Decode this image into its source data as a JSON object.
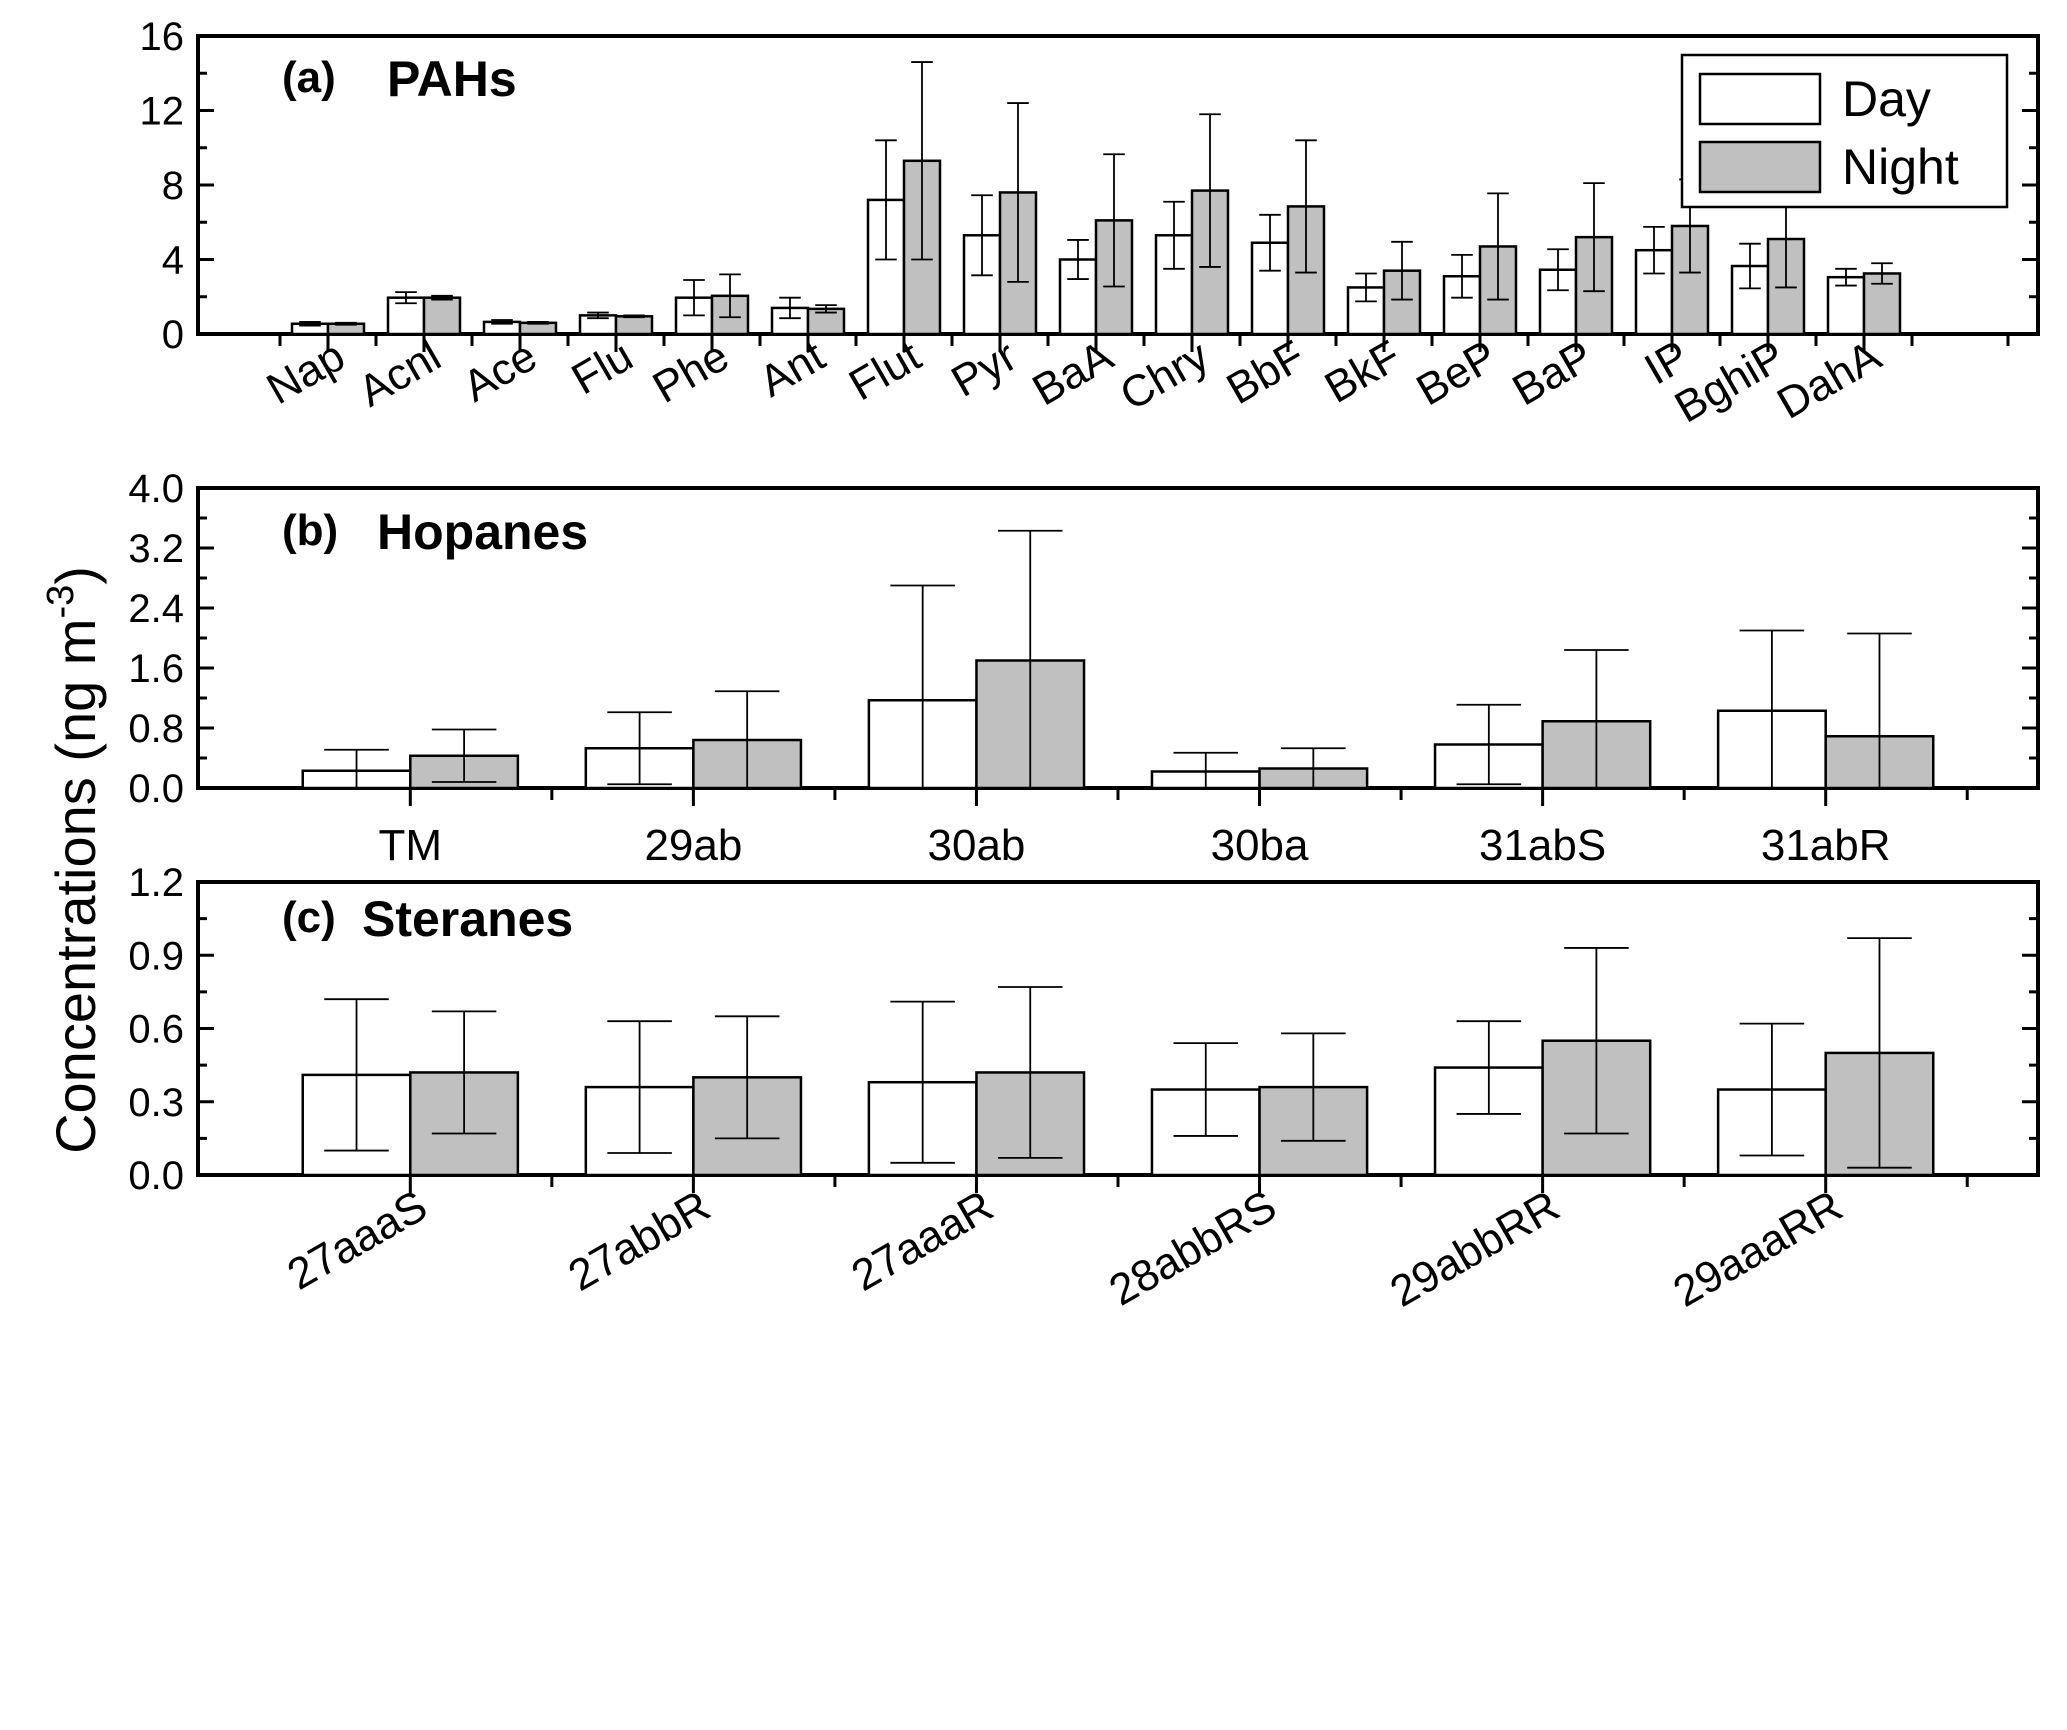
{
  "figure": {
    "y_axis_label": "Concentrations (ng m",
    "y_axis_label_sup": "-3",
    "y_axis_label_close": ")",
    "legend": [
      {
        "label": "Day",
        "color": "#ffffff"
      },
      {
        "label": "Night",
        "color": "#c0c0c0"
      }
    ]
  },
  "chart_data": [
    {
      "type": "bar",
      "panel_label": "(a)",
      "title": "PAHs",
      "categories": [
        "Nap",
        "Acnl",
        "Ace",
        "Flu",
        "Phe",
        "Ant",
        "Flut",
        "Pyr",
        "BaA",
        "Chry",
        "BbF",
        "BkF",
        "BeP",
        "BaP",
        "IP",
        "BghiP",
        "DahA"
      ],
      "ylim": [
        0,
        16
      ],
      "yticks": [
        "0",
        "4",
        "8",
        "12",
        "16"
      ],
      "ytick_values": [
        0,
        4,
        8,
        12,
        16
      ],
      "series": [
        {
          "name": "Day",
          "values": [
            0.55,
            1.95,
            0.65,
            1.0,
            1.95,
            1.4,
            7.2,
            5.3,
            4.0,
            5.3,
            4.9,
            2.5,
            3.1,
            3.45,
            4.5,
            3.65,
            3.05
          ],
          "errors": [
            0.1,
            0.3,
            0.1,
            0.15,
            0.95,
            0.55,
            3.2,
            2.15,
            1.05,
            1.8,
            1.5,
            0.75,
            1.15,
            1.1,
            1.25,
            1.2,
            0.45
          ]
        },
        {
          "name": "Night",
          "values": [
            0.55,
            1.95,
            0.6,
            0.95,
            2.05,
            1.35,
            9.3,
            7.6,
            6.1,
            7.7,
            6.85,
            3.4,
            4.7,
            5.2,
            5.8,
            5.1,
            3.25
          ],
          "errors": [
            0.05,
            0.1,
            0.05,
            0.05,
            1.15,
            0.2,
            5.3,
            4.8,
            3.55,
            4.1,
            3.55,
            1.55,
            2.85,
            2.9,
            2.5,
            2.6,
            0.55
          ]
        }
      ],
      "xlabel": "",
      "ylabel": "",
      "grid": false,
      "legend_position": "top-right"
    },
    {
      "type": "bar",
      "panel_label": "(b)",
      "title": "Hopanes",
      "categories": [
        "TM",
        "29ab",
        "30ab",
        "30ba",
        "31abS",
        "31abR"
      ],
      "ylim": [
        0,
        4.0
      ],
      "yticks": [
        "0.0",
        "0.8",
        "1.6",
        "2.4",
        "3.2",
        "4.0"
      ],
      "ytick_values": [
        0,
        0.8,
        1.6,
        2.4,
        3.2,
        4.0
      ],
      "series": [
        {
          "name": "Day",
          "values": [
            0.23,
            0.53,
            1.17,
            0.22,
            0.58,
            1.03
          ],
          "errors": [
            0.28,
            0.48,
            1.53,
            0.25,
            0.53,
            1.07
          ]
        },
        {
          "name": "Night",
          "values": [
            0.43,
            0.64,
            1.7,
            0.26,
            0.89,
            0.69
          ],
          "errors": [
            0.35,
            0.65,
            1.73,
            0.27,
            0.95,
            1.37
          ]
        }
      ],
      "xlabel": "",
      "ylabel": "",
      "grid": false
    },
    {
      "type": "bar",
      "panel_label": "(c)",
      "title": "Steranes",
      "categories": [
        "27aaaS",
        "27abbR",
        "27aaaR",
        "28abbRS",
        "29abbRR",
        "29aaaRR"
      ],
      "ylim": [
        0,
        1.2
      ],
      "yticks": [
        "0.0",
        "0.3",
        "0.6",
        "0.9",
        "1.2"
      ],
      "ytick_values": [
        0,
        0.3,
        0.6,
        0.9,
        1.2
      ],
      "series": [
        {
          "name": "Day",
          "values": [
            0.41,
            0.36,
            0.38,
            0.35,
            0.44,
            0.35
          ],
          "errors": [
            0.31,
            0.27,
            0.33,
            0.19,
            0.19,
            0.27
          ]
        },
        {
          "name": "Night",
          "values": [
            0.42,
            0.4,
            0.42,
            0.36,
            0.55,
            0.5
          ],
          "errors": [
            0.25,
            0.25,
            0.35,
            0.22,
            0.38,
            0.47
          ]
        }
      ],
      "xlabel": "",
      "ylabel": "",
      "grid": false
    }
  ]
}
